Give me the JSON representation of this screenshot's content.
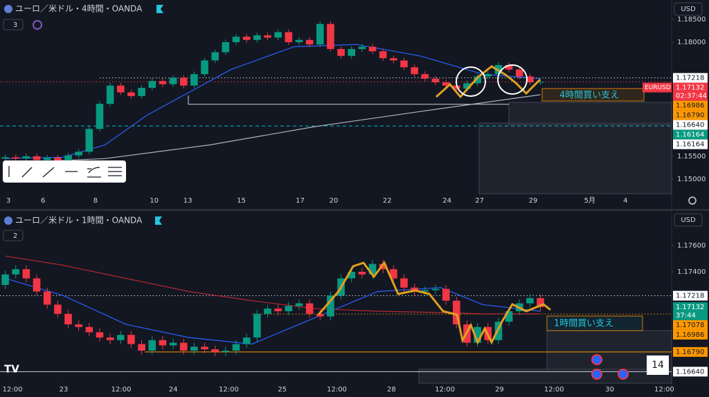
{
  "chart_data": [
    {
      "type": "candlestick",
      "title": "ユーロ／米ドル・4時間・OANDA",
      "indicator_count": 3,
      "currency": "USD",
      "tag": "EURUSD",
      "countdown": "02:37:44",
      "annotation": "4時間買い支え",
      "xlim": [
        0,
        64
      ],
      "ylim": [
        1.14682,
        1.18621
      ],
      "xticks": [
        {
          "value": 0.8,
          "label": "3"
        },
        {
          "value": 4.1,
          "label": "6"
        },
        {
          "value": 9.1,
          "label": "8"
        },
        {
          "value": 14.7,
          "label": "10"
        },
        {
          "value": 17.9,
          "label": "13"
        },
        {
          "value": 23.0,
          "label": "15"
        },
        {
          "value": 28.6,
          "label": "17"
        },
        {
          "value": 31.8,
          "label": "20"
        },
        {
          "value": 36.9,
          "label": "22"
        },
        {
          "value": 42.6,
          "label": "24"
        },
        {
          "value": 45.7,
          "label": "27"
        },
        {
          "value": 50.8,
          "label": "29"
        },
        {
          "value": 56.2,
          "label": "5月"
        },
        {
          "value": 59.6,
          "label": "4"
        }
      ],
      "yticks": [
        {
          "value": 1.185,
          "label": "1.18500"
        },
        {
          "value": 1.18,
          "label": "1.18000"
        },
        {
          "value": 1.155,
          "label": "1.15500"
        },
        {
          "value": 1.15,
          "label": "1.15000"
        }
      ],
      "up_color": "#089981",
      "down_color": "#f23645",
      "open": [
        1.1545,
        1.1548,
        1.1545,
        1.155,
        1.1542,
        1.1547,
        1.154,
        1.1552,
        1.156,
        1.161,
        1.1665,
        1.1705,
        1.169,
        1.1682,
        1.17,
        1.1715,
        1.1708,
        1.1722,
        1.1705,
        1.173,
        1.176,
        1.1778,
        1.18,
        1.1812,
        1.1805,
        1.1815,
        1.181,
        1.1822,
        1.18,
        1.1805,
        1.1795,
        1.184,
        1.1785,
        1.177,
        1.1785,
        1.179,
        1.178,
        1.1765,
        1.176,
        1.1745,
        1.173,
        1.172,
        1.1712,
        1.1705,
        1.1698,
        1.171,
        1.1725,
        1.173,
        1.175,
        1.174,
        1.1725,
        1.1712
      ],
      "high": [
        1.1554,
        1.1554,
        1.1556,
        1.1556,
        1.1553,
        1.1553,
        1.1558,
        1.1566,
        1.1616,
        1.1671,
        1.1711,
        1.1711,
        1.1696,
        1.1706,
        1.1721,
        1.1721,
        1.1728,
        1.1728,
        1.1736,
        1.1766,
        1.1784,
        1.1806,
        1.1818,
        1.1818,
        1.1821,
        1.1821,
        1.1828,
        1.1828,
        1.1811,
        1.1811,
        1.1846,
        1.1846,
        1.1791,
        1.1791,
        1.1796,
        1.1796,
        1.1786,
        1.1771,
        1.1766,
        1.1751,
        1.1736,
        1.1726,
        1.1718,
        1.1711,
        1.1716,
        1.1731,
        1.1736,
        1.1756,
        1.1756,
        1.1746,
        1.1731,
        1.1719
      ],
      "low": [
        1.1539,
        1.1539,
        1.1539,
        1.1536,
        1.1536,
        1.1534,
        1.1534,
        1.1546,
        1.1554,
        1.1604,
        1.1659,
        1.1684,
        1.1676,
        1.1676,
        1.1694,
        1.1702,
        1.1702,
        1.1699,
        1.1699,
        1.1724,
        1.1754,
        1.1772,
        1.1794,
        1.1799,
        1.1799,
        1.1804,
        1.1804,
        1.1794,
        1.1794,
        1.1789,
        1.1789,
        1.1779,
        1.1764,
        1.1764,
        1.1779,
        1.1774,
        1.1759,
        1.1754,
        1.1739,
        1.1724,
        1.1714,
        1.1706,
        1.1699,
        1.1692,
        1.1692,
        1.1704,
        1.1719,
        1.1724,
        1.1734,
        1.1719,
        1.1706,
        1.1706
      ],
      "close": [
        1.1548,
        1.1545,
        1.155,
        1.1542,
        1.1547,
        1.154,
        1.1552,
        1.156,
        1.161,
        1.1665,
        1.1705,
        1.169,
        1.1682,
        1.17,
        1.1715,
        1.1708,
        1.1722,
        1.1705,
        1.173,
        1.176,
        1.1778,
        1.18,
        1.1812,
        1.1805,
        1.1815,
        1.181,
        1.1822,
        1.18,
        1.1805,
        1.1795,
        1.184,
        1.1785,
        1.177,
        1.1785,
        1.179,
        1.178,
        1.1765,
        1.176,
        1.1745,
        1.173,
        1.172,
        1.1712,
        1.1705,
        1.1698,
        1.171,
        1.1725,
        1.173,
        1.175,
        1.174,
        1.1725,
        1.1712,
        1.1713
      ],
      "lines": [
        {
          "color": "#2962ff",
          "x": [
            0.5,
            6,
            10,
            14,
            18,
            22,
            28,
            34,
            40,
            46,
            51.5
          ],
          "values": [
            1.1545,
            1.1548,
            1.1575,
            1.164,
            1.169,
            1.174,
            1.179,
            1.1795,
            1.177,
            1.173,
            1.172
          ]
        },
        {
          "color": "#b2b5be",
          "x": [
            0.5,
            10,
            20,
            30,
            40,
            51.5
          ],
          "values": [
            1.1535,
            1.1545,
            1.1575,
            1.1615,
            1.1648,
            1.1685
          ]
        }
      ],
      "price_labels": [
        {
          "value": 1.17218,
          "color": "#ffffff",
          "line": "dotted",
          "line_color": "#d1d4dc",
          "from": 9.5
        },
        {
          "value": 1.17132,
          "color": "#f23645",
          "line": "dotted",
          "line_color": "#f23645",
          "from": 0
        },
        {
          "value": 1.16986,
          "color": "#ff9800"
        },
        {
          "value": 1.1679,
          "label": "1.16790",
          "color": "#ff9800"
        },
        {
          "value": 1.1664,
          "label": "1.16640",
          "color": "#ffffff",
          "line": "solid",
          "line_color": "#d1d4dc",
          "from": 17.9,
          "to": 48.5
        },
        {
          "value": 1.16164,
          "color": "#089981",
          "line": "dashed",
          "line_color": "#00bcd4",
          "from": 0
        },
        {
          "value": 1.16164,
          "color": "#ffffff"
        }
      ]
    },
    {
      "type": "candlestick",
      "title": "ユーロ／米ドル・1時間・OANDA",
      "indicator_count": 2,
      "currency": "USD",
      "countdown": "37:44",
      "annotation": "1時間買い支え",
      "event_count": "14",
      "xlim": [
        0,
        64
      ],
      "ylim": [
        1.16563,
        1.17742
      ],
      "xticks": [
        {
          "value": 1.19,
          "label": "12:00"
        },
        {
          "value": 6.07,
          "label": "23"
        },
        {
          "value": 11.55,
          "label": "12:00"
        },
        {
          "value": 16.5,
          "label": "24"
        },
        {
          "value": 21.8,
          "label": "12:00"
        },
        {
          "value": 26.9,
          "label": "25"
        },
        {
          "value": 32.1,
          "label": "12:00"
        },
        {
          "value": 37.3,
          "label": "28"
        },
        {
          "value": 42.4,
          "label": "12:00"
        },
        {
          "value": 47.6,
          "label": "29"
        },
        {
          "value": 52.8,
          "label": "12:00"
        },
        {
          "value": 58.1,
          "label": "30"
        },
        {
          "value": 63.3,
          "label": "12:00"
        }
      ],
      "yticks": [
        {
          "value": 1.176,
          "label": "1.17600"
        },
        {
          "value": 1.174,
          "label": "1.17400"
        }
      ],
      "up_color": "#089981",
      "down_color": "#f23645",
      "open": [
        1.173,
        1.1738,
        1.1742,
        1.1735,
        1.1725,
        1.1715,
        1.1708,
        1.17,
        1.1698,
        1.1694,
        1.169,
        1.1688,
        1.1692,
        1.1685,
        1.168,
        1.1688,
        1.1684,
        1.1686,
        1.168,
        1.1683,
        1.1681,
        1.1679,
        1.168,
        1.1685,
        1.169,
        1.1708,
        1.1712,
        1.171,
        1.1714,
        1.1716,
        1.1708,
        1.1706,
        1.1722,
        1.1735,
        1.174,
        1.1738,
        1.1746,
        1.1742,
        1.1735,
        1.1728,
        1.1725,
        1.1726,
        1.1727,
        1.1718,
        1.17,
        1.1686,
        1.1698,
        1.1688,
        1.1702,
        1.171,
        1.1716,
        1.172
      ],
      "high": [
        1.1741,
        1.1745,
        1.1745,
        1.1738,
        1.1728,
        1.1718,
        1.1711,
        1.1703,
        1.1701,
        1.1697,
        1.1693,
        1.1695,
        1.1695,
        1.1688,
        1.1691,
        1.1691,
        1.1689,
        1.1689,
        1.1686,
        1.1686,
        1.1684,
        1.1683,
        1.1688,
        1.1693,
        1.1711,
        1.1715,
        1.1715,
        1.1717,
        1.1719,
        1.1719,
        1.1711,
        1.1725,
        1.1738,
        1.1743,
        1.1743,
        1.1749,
        1.1749,
        1.1745,
        1.1738,
        1.1731,
        1.1729,
        1.173,
        1.173,
        1.1721,
        1.1703,
        1.1701,
        1.1701,
        1.1705,
        1.1713,
        1.1719,
        1.1723,
        1.1723
      ],
      "low": [
        1.1727,
        1.1735,
        1.1732,
        1.1722,
        1.1712,
        1.1705,
        1.1697,
        1.1695,
        1.1691,
        1.1687,
        1.1685,
        1.1685,
        1.1682,
        1.1677,
        1.1677,
        1.1681,
        1.1681,
        1.1677,
        1.1677,
        1.1678,
        1.1676,
        1.1676,
        1.1677,
        1.1682,
        1.1687,
        1.1705,
        1.1707,
        1.1707,
        1.1711,
        1.1705,
        1.1703,
        1.1703,
        1.1719,
        1.1732,
        1.1735,
        1.1735,
        1.1739,
        1.1732,
        1.1725,
        1.1722,
        1.1722,
        1.1723,
        1.1715,
        1.1697,
        1.1683,
        1.1683,
        1.1685,
        1.1685,
        1.1699,
        1.1707,
        1.1713,
        1.17102
      ],
      "close": [
        1.1738,
        1.1742,
        1.1735,
        1.1725,
        1.1715,
        1.1708,
        1.17,
        1.1698,
        1.1694,
        1.169,
        1.1688,
        1.1692,
        1.1685,
        1.168,
        1.1688,
        1.1684,
        1.1686,
        1.168,
        1.1683,
        1.1681,
        1.1679,
        1.168,
        1.1685,
        1.169,
        1.1708,
        1.1712,
        1.171,
        1.1714,
        1.1716,
        1.1708,
        1.1706,
        1.1722,
        1.1735,
        1.174,
        1.1738,
        1.1746,
        1.1742,
        1.1735,
        1.1728,
        1.1725,
        1.1726,
        1.1727,
        1.1718,
        1.17,
        1.1686,
        1.1698,
        1.1688,
        1.1702,
        1.171,
        1.1716,
        1.172,
        1.17132
      ],
      "lines": [
        {
          "color": "#2962ff",
          "x": [
            0.5,
            6,
            12,
            18,
            24,
            30,
            36,
            42,
            46,
            51.5
          ],
          "values": [
            1.1735,
            1.1722,
            1.17,
            1.169,
            1.1685,
            1.1705,
            1.1725,
            1.1728,
            1.1715,
            1.171
          ]
        },
        {
          "color": "#b22833",
          "x": [
            0.5,
            6,
            12,
            18,
            24,
            30,
            36,
            42,
            46,
            51.5
          ],
          "values": [
            1.1752,
            1.1745,
            1.1735,
            1.1725,
            1.1718,
            1.1712,
            1.171,
            1.1709,
            1.1708,
            1.1708
          ]
        }
      ],
      "price_labels": [
        {
          "value": 1.17218,
          "color": "#ffffff",
          "line": "dotted",
          "line_color": "#d1d4dc",
          "from": 0
        },
        {
          "value": 1.17132,
          "color": "#089981"
        },
        {
          "value": 1.17078,
          "color": "#ff9800",
          "line": "dotted",
          "line_color": "#ff9800",
          "from": 24
        },
        {
          "value": 1.16986,
          "color": "#ff9800"
        },
        {
          "value": 1.1679,
          "label": "1.16790",
          "color": "#ff9800",
          "line": "solid",
          "line_color": "#ff9800",
          "from": 13.8
        },
        {
          "value": 1.1664,
          "label": "1.16640",
          "color": "#ffffff",
          "line": "solid",
          "line_color": "#d1d4dc",
          "from": 0
        }
      ]
    }
  ]
}
